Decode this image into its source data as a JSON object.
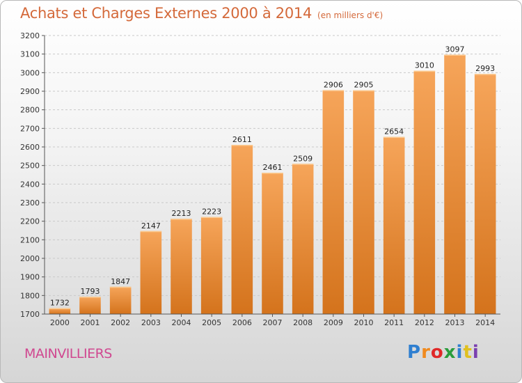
{
  "chart_data": {
    "type": "bar",
    "title": "Achats et Charges Externes 2000 à 2014",
    "subtitle": "(en milliers d'€)",
    "categories": [
      "2000",
      "2001",
      "2002",
      "2003",
      "2004",
      "2005",
      "2006",
      "2007",
      "2008",
      "2009",
      "2010",
      "2011",
      "2012",
      "2013",
      "2014"
    ],
    "values": [
      1732,
      1793,
      1847,
      2147,
      2213,
      2223,
      2611,
      2461,
      2509,
      2906,
      2905,
      2654,
      3010,
      3097,
      2993
    ],
    "ylim": [
      1700,
      3200
    ],
    "yticks": [
      1700,
      1800,
      1900,
      2000,
      2100,
      2200,
      2300,
      2400,
      2500,
      2600,
      2700,
      2800,
      2900,
      3000,
      3100,
      3200
    ],
    "grid": true,
    "bar_color_top": "#f6a55a",
    "bar_color_bottom": "#d4731c"
  },
  "footer": {
    "city": "MAINVILLIERS",
    "city_color": "#d04890",
    "logo": "Proxiti",
    "logo_colors": [
      "#2f7fd0",
      "#f08a1e",
      "#e02828",
      "#2a9d3c",
      "#2f7fd0",
      "#e0c020",
      "#7a3fb0"
    ]
  }
}
